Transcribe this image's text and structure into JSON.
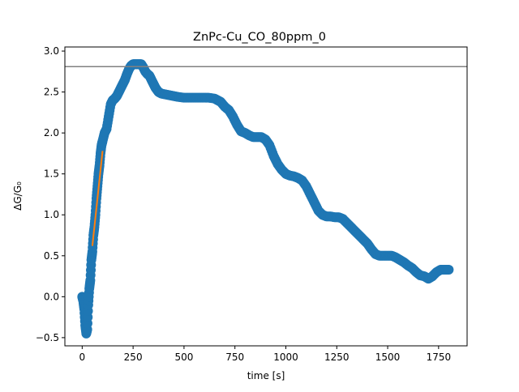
{
  "chart_data": {
    "type": "scatter",
    "title": "ZnPc-Cu_CO_80ppm_0",
    "xlabel": "time [s]",
    "ylabel": "ΔG/G₀",
    "xlim": [
      -85,
      1890
    ],
    "ylim": [
      -0.6,
      3.05
    ],
    "xticks": [
      0,
      250,
      500,
      750,
      1000,
      1250,
      1500,
      1750
    ],
    "yticks": [
      -0.5,
      0.0,
      0.5,
      1.0,
      1.5,
      2.0,
      2.5,
      3.0
    ],
    "ytick_labels": [
      "−0.5",
      "0.0",
      "0.5",
      "1.0",
      "1.5",
      "2.0",
      "2.5",
      "3.0"
    ],
    "grid": false,
    "colors": {
      "scatter": "#1f77b4",
      "fit_line": "#ff7f0e",
      "reference_line": "#808080"
    },
    "scatter_series": {
      "x": [
        0,
        5,
        10,
        15,
        20,
        25,
        30,
        35,
        40,
        45,
        50,
        55,
        60,
        65,
        70,
        75,
        80,
        85,
        90,
        95,
        100,
        110,
        120,
        130,
        140,
        150,
        160,
        170,
        180,
        190,
        200,
        210,
        220,
        230,
        240,
        250,
        260,
        270,
        280,
        290,
        300,
        310,
        320,
        330,
        340,
        350,
        360,
        375,
        390,
        410,
        430,
        450,
        470,
        500,
        530,
        560,
        590,
        620,
        650,
        665,
        680,
        700,
        720,
        740,
        760,
        780,
        800,
        820,
        840,
        860,
        880,
        900,
        920,
        940,
        960,
        980,
        1000,
        1020,
        1040,
        1060,
        1080,
        1100,
        1120,
        1140,
        1160,
        1180,
        1200,
        1220,
        1240,
        1260,
        1280,
        1300,
        1320,
        1340,
        1360,
        1380,
        1400,
        1420,
        1440,
        1460,
        1480,
        1500,
        1520,
        1540,
        1560,
        1580,
        1600,
        1620,
        1640,
        1660,
        1680,
        1700,
        1720,
        1740,
        1760,
        1780,
        1800
      ],
      "y": [
        0.0,
        -0.05,
        -0.15,
        -0.35,
        -0.45,
        -0.4,
        -0.1,
        0.1,
        0.2,
        0.45,
        0.55,
        0.75,
        0.85,
        1.0,
        1.2,
        1.35,
        1.5,
        1.6,
        1.75,
        1.85,
        1.9,
        2.0,
        2.05,
        2.2,
        2.35,
        2.4,
        2.42,
        2.45,
        2.5,
        2.55,
        2.6,
        2.65,
        2.72,
        2.78,
        2.82,
        2.84,
        2.84,
        2.84,
        2.84,
        2.84,
        2.8,
        2.75,
        2.72,
        2.7,
        2.65,
        2.6,
        2.55,
        2.5,
        2.48,
        2.47,
        2.46,
        2.45,
        2.44,
        2.43,
        2.43,
        2.43,
        2.43,
        2.43,
        2.42,
        2.4,
        2.38,
        2.32,
        2.28,
        2.2,
        2.1,
        2.02,
        2.0,
        1.97,
        1.95,
        1.95,
        1.95,
        1.92,
        1.85,
        1.72,
        1.62,
        1.55,
        1.5,
        1.48,
        1.47,
        1.45,
        1.42,
        1.35,
        1.25,
        1.15,
        1.05,
        1.0,
        0.98,
        0.98,
        0.97,
        0.97,
        0.95,
        0.9,
        0.85,
        0.8,
        0.75,
        0.7,
        0.65,
        0.58,
        0.52,
        0.5,
        0.5,
        0.5,
        0.5,
        0.48,
        0.45,
        0.42,
        0.38,
        0.35,
        0.3,
        0.26,
        0.25,
        0.22,
        0.25,
        0.3,
        0.33,
        0.33,
        0.33
      ]
    },
    "fit_line": {
      "x": [
        50,
        100
      ],
      "y": [
        0.62,
        1.78
      ]
    },
    "reference_line": {
      "y": 2.81
    }
  }
}
